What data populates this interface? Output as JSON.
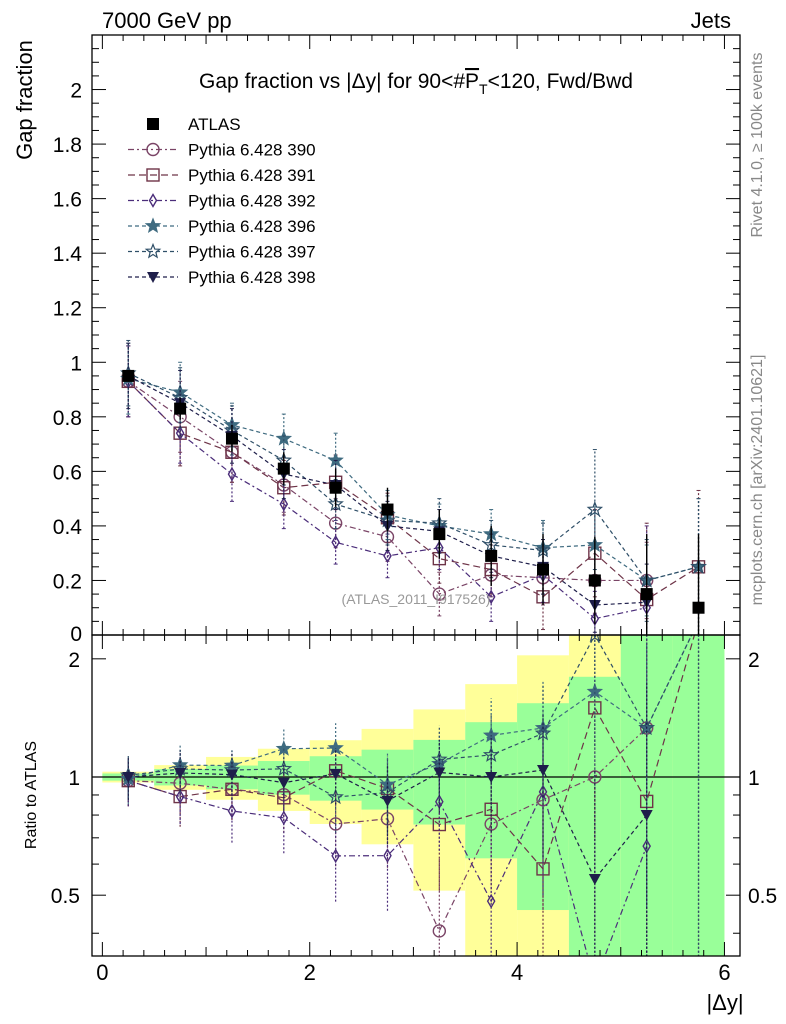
{
  "header": {
    "energy_label": "7000 GeV pp",
    "process_label": "Jets",
    "rivet_label": "Rivet 4.1.0, ≥ 100k events",
    "mcplots_label": "mcplots.cern.ch [arXiv:2401.10621]"
  },
  "chart_data": {
    "type": "scatter",
    "title": "Gap fraction vs |Δy| for 90<#P̅T<120, Fwd/Bwd",
    "title_parts": {
      "prefix": "Gap fraction vs |Δy| for 90<#",
      "p": "P",
      "t": "T",
      "suffix": "<120, Fwd/Bwd"
    },
    "analysis_label": "(ATLAS_2011_I917526)",
    "xlabel": "|Δy|",
    "ylabel": "Gap fraction",
    "ratio_ylabel": "Ratio to ATLAS",
    "xlim": [
      -0.1,
      6.15
    ],
    "ylim": [
      0,
      2.2
    ],
    "ratio_ylim": [
      0.35,
      2.3
    ],
    "x_ticks": [
      0,
      2,
      4,
      6
    ],
    "y_ticks": [
      0.2,
      0.4,
      0.6,
      0.8,
      1,
      1.2,
      1.4,
      1.6,
      1.8,
      2
    ],
    "y_zero_label": "0",
    "ratio_ticks": [
      0.5,
      1,
      2
    ],
    "x": [
      0.25,
      0.75,
      1.25,
      1.75,
      2.25,
      2.75,
      3.25,
      3.75,
      4.25,
      4.75,
      5.25,
      5.75
    ],
    "data": {
      "name": "ATLAS",
      "color": "#000000",
      "values": [
        0.95,
        0.83,
        0.72,
        0.61,
        0.54,
        0.46,
        0.37,
        0.29,
        0.24,
        0.2,
        0.15,
        0.1
      ],
      "band_inner": [
        0.02,
        0.04,
        0.05,
        0.06,
        0.07,
        0.08,
        0.09,
        0.11,
        0.13,
        0.16,
        0.22,
        0.27
      ],
      "band_outer": [
        0.03,
        0.06,
        0.09,
        0.11,
        0.13,
        0.15,
        0.18,
        0.21,
        0.25,
        0.32,
        0.4,
        0.65
      ]
    },
    "series": [
      {
        "name": "Pythia 6.428 390",
        "color": "#7a4466",
        "marker": "circle",
        "dash": "6,3,2,3",
        "values": [
          0.93,
          0.8,
          0.67,
          0.55,
          0.41,
          0.36,
          0.15,
          0.22,
          0.21,
          0.2,
          0.2,
          null
        ],
        "errors": [
          0.13,
          0.13,
          0.11,
          0.1,
          0.09,
          0.09,
          0.08,
          0.08,
          0.1,
          0.12,
          0.14,
          null
        ]
      },
      {
        "name": "Pythia 6.428 391",
        "color": "#6e3448",
        "marker": "square",
        "dash": "7,4",
        "values": [
          0.93,
          0.74,
          0.67,
          0.54,
          0.56,
          0.43,
          0.28,
          0.24,
          0.14,
          0.3,
          0.13,
          0.25
        ],
        "errors": [
          0.13,
          0.12,
          0.11,
          0.1,
          0.1,
          0.09,
          0.09,
          0.09,
          0.12,
          0.16,
          0.28,
          0.28
        ]
      },
      {
        "name": "Pythia 6.428 392",
        "color": "#4b2d7a",
        "marker": "diamond",
        "dash": "6,3,2,3",
        "values": [
          0.93,
          0.74,
          0.59,
          0.48,
          0.34,
          0.29,
          0.32,
          0.14,
          0.22,
          0.06,
          0.1,
          null
        ],
        "errors": [
          0.13,
          0.11,
          0.1,
          0.09,
          0.08,
          0.08,
          0.08,
          0.09,
          0.1,
          0.1,
          0.3,
          null
        ]
      },
      {
        "name": "Pythia 6.428 396",
        "color": "#3f6b80",
        "marker": "star-filled",
        "dash": "4,3",
        "values": [
          0.94,
          0.89,
          0.77,
          0.72,
          0.64,
          0.44,
          0.4,
          0.37,
          0.32,
          0.33,
          0.2,
          0.25
        ],
        "errors": [
          0.13,
          0.11,
          0.08,
          0.09,
          0.1,
          0.09,
          0.08,
          0.09,
          0.1,
          0.14,
          0.13,
          0.25
        ]
      },
      {
        "name": "Pythia 6.428 397",
        "color": "#2f4f68",
        "marker": "star-open",
        "dash": "4,3",
        "values": [
          0.96,
          0.87,
          0.75,
          0.64,
          0.48,
          0.42,
          0.41,
          0.33,
          0.31,
          0.46,
          0.2,
          0.25
        ],
        "errors": [
          0.12,
          0.11,
          0.09,
          0.09,
          0.09,
          0.09,
          0.09,
          0.09,
          0.1,
          0.22,
          0.15,
          0.25
        ]
      },
      {
        "name": "Pythia 6.428 398",
        "color": "#1e1e4a",
        "marker": "triangle-down",
        "dash": "4,3",
        "values": [
          0.95,
          0.85,
          0.73,
          0.59,
          0.55,
          0.4,
          0.38,
          0.29,
          0.25,
          0.11,
          0.12,
          null
        ],
        "errors": [
          0.12,
          0.12,
          0.1,
          0.09,
          0.09,
          0.09,
          0.08,
          0.08,
          0.1,
          0.1,
          0.14,
          null
        ]
      }
    ]
  }
}
